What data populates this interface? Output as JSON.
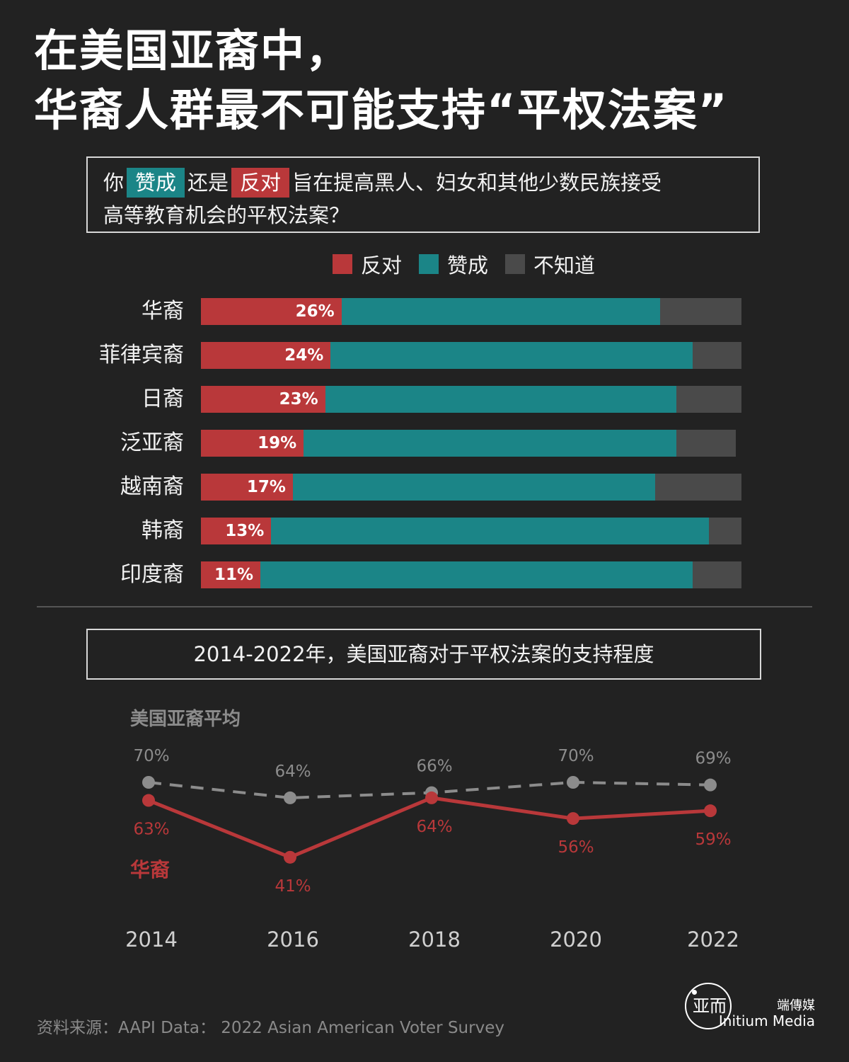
{
  "title": {
    "line1": "在美国亚裔中，",
    "line2": "华裔人群最不可能支持“平权法案”"
  },
  "question": {
    "prefix": "你",
    "support": "赞成",
    "middle": "还是",
    "oppose": "反对",
    "rest": "旨在提高黑人、妇女和其他少数民族接受",
    "line2": "高等教育机会的平权法案？"
  },
  "legend": [
    {
      "label": "反对",
      "color": "#b9383a"
    },
    {
      "label": "赞成",
      "color": "#1b8587"
    },
    {
      "label": "不知道",
      "color": "#4a4a4a"
    }
  ],
  "chart_data": [
    {
      "type": "bar",
      "stacked": true,
      "orientation": "horizontal",
      "categories": [
        "华裔",
        "菲律宾裔",
        "日裔",
        "泛亚裔",
        "越南裔",
        "韩裔",
        "印度裔"
      ],
      "series": [
        {
          "name": "反对",
          "values": [
            26,
            24,
            23,
            19,
            17,
            13,
            11
          ],
          "labels": [
            "26%",
            "24%",
            "23%",
            "19%",
            "17%",
            "13%",
            "11%"
          ]
        },
        {
          "name": "赞成",
          "values": [
            59,
            67,
            65,
            69,
            67,
            81,
            80
          ]
        },
        {
          "name": "不知道",
          "values": [
            15,
            9,
            12,
            11,
            16,
            6,
            9
          ]
        }
      ],
      "xlim": [
        0,
        100
      ]
    },
    {
      "type": "line",
      "title": "2014-2022年，美国亚裔对于平权法案的支持程度",
      "x": [
        "2014",
        "2016",
        "2018",
        "2020",
        "2022"
      ],
      "ylim": [
        35,
        75
      ],
      "series": [
        {
          "name": "美国亚裔平均",
          "style": "dashed",
          "color": "#8c8c8c",
          "values": [
            70,
            64,
            66,
            70,
            69
          ],
          "labels": [
            "70%",
            "64%",
            "66%",
            "70%",
            "69%"
          ]
        },
        {
          "name": "华裔",
          "style": "solid",
          "color": "#b9383a",
          "values": [
            63,
            41,
            64,
            56,
            59
          ],
          "labels": [
            "63%",
            "41%",
            "64%",
            "56%",
            "59%"
          ]
        }
      ]
    }
  ],
  "subtitle": "2014-2022年，美国亚裔对于平权法案的支持程度",
  "source": "资料来源：AAPI Data： 2022 Asian American Voter Survey",
  "brand": {
    "logo_glyph": "亚而",
    "cn": "端傳媒",
    "en": "Initium Media"
  }
}
